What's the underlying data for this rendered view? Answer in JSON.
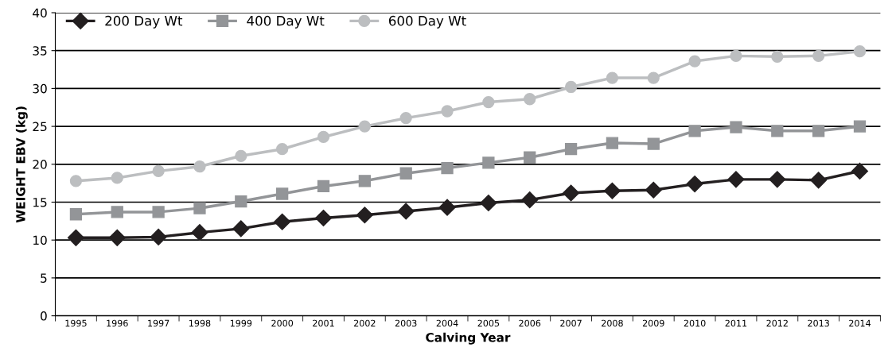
{
  "chart_data": {
    "type": "line",
    "xlabel": "Calving Year",
    "ylabel": "WEIGHT EBV (kg)",
    "categories": [
      "1995",
      "1996",
      "1997",
      "1998",
      "1999",
      "2000",
      "2001",
      "2002",
      "2003",
      "2004",
      "2005",
      "2006",
      "2007",
      "2008",
      "2009",
      "2010",
      "2011",
      "2012",
      "2013",
      "2014"
    ],
    "series": [
      {
        "name": "200 Day Wt",
        "color": "#231f20",
        "marker": "diamond",
        "values": [
          10.3,
          10.3,
          10.4,
          11.0,
          11.5,
          12.4,
          12.9,
          13.3,
          13.8,
          14.3,
          14.9,
          15.3,
          16.2,
          16.5,
          16.6,
          17.4,
          18.0,
          18.0,
          17.9,
          19.1
        ]
      },
      {
        "name": "400 Day Wt",
        "color": "#939598",
        "marker": "square",
        "values": [
          13.4,
          13.7,
          13.7,
          14.2,
          15.1,
          16.1,
          17.1,
          17.8,
          18.8,
          19.5,
          20.2,
          20.9,
          22.0,
          22.8,
          22.7,
          24.4,
          24.9,
          24.4,
          24.4,
          25.0
        ]
      },
      {
        "name": "600 Day Wt",
        "color": "#bcbec0",
        "marker": "circle",
        "values": [
          17.8,
          18.2,
          19.1,
          19.7,
          21.1,
          22.0,
          23.6,
          25.0,
          26.1,
          27.0,
          28.2,
          28.6,
          30.2,
          31.4,
          31.4,
          33.6,
          34.3,
          34.2,
          34.3,
          34.9
        ]
      }
    ],
    "ylim": [
      0,
      40
    ],
    "yticks": [
      0,
      5,
      10,
      15,
      20,
      25,
      30,
      35,
      40
    ],
    "grid": "y",
    "legend": "top left",
    "line_style": "solid"
  }
}
